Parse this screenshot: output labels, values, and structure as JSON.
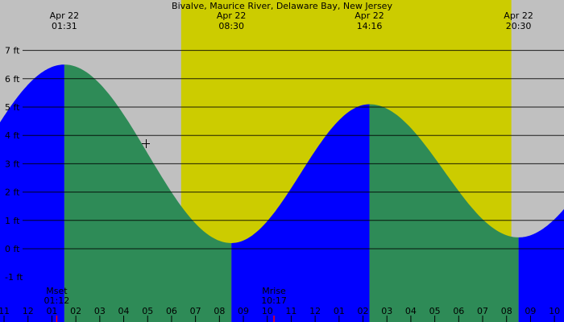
{
  "chart_data": {
    "type": "area",
    "title": "Bivalve, Maurice River, Delaware Bay, New Jersey",
    "xlabel": "",
    "ylabel": "",
    "ylim": [
      -1.5,
      7.5
    ],
    "xlim_hours": [
      -0.17,
      23.4
    ],
    "y_ticks": [
      -1,
      0,
      1,
      2,
      3,
      4,
      5,
      6,
      7
    ],
    "y_tick_labels": [
      "-1 ft",
      "0 ft",
      "1 ft",
      "2 ft",
      "3 ft",
      "4 ft",
      "5 ft",
      "6 ft",
      "7 ft"
    ],
    "x_hours": [
      0,
      1,
      2,
      3,
      4,
      5,
      6,
      7,
      8,
      9,
      10,
      11,
      12,
      13,
      14,
      15,
      16,
      17,
      18,
      19,
      20,
      21,
      22,
      23
    ],
    "x_tick_labels": [
      "11",
      "12",
      "01",
      "02",
      "03",
      "04",
      "05",
      "06",
      "07",
      "08",
      "09",
      "10",
      "11",
      "12",
      "01",
      "02",
      "03",
      "04",
      "05",
      "06",
      "07",
      "08",
      "09",
      "10"
    ],
    "extremes": [
      {
        "date": "Apr 22",
        "time": "01:31",
        "hour": 2.52,
        "height": 6.5,
        "type": "high"
      },
      {
        "date": "Apr 22",
        "time": "08:30",
        "hour": 9.5,
        "height": 0.2,
        "type": "low"
      },
      {
        "date": "Apr 22",
        "time": "14:16",
        "hour": 15.27,
        "height": 5.1,
        "type": "high"
      },
      {
        "date": "Apr 22",
        "time": "20:30",
        "hour": 21.5,
        "height": 0.4,
        "type": "low"
      }
    ],
    "daylight_hours": [
      7.4,
      21.2
    ],
    "moon_events": [
      {
        "label": "Mset",
        "time": "01:12",
        "hour": 2.2
      },
      {
        "label": "Mrise",
        "time": "10:17",
        "hour": 11.28
      }
    ],
    "colors": {
      "rising": "#0000ff",
      "falling": "#2e8b57",
      "day": "#cccc00",
      "night": "#c0c0c0",
      "moon_marker": "#ff0000"
    },
    "grid": true
  }
}
